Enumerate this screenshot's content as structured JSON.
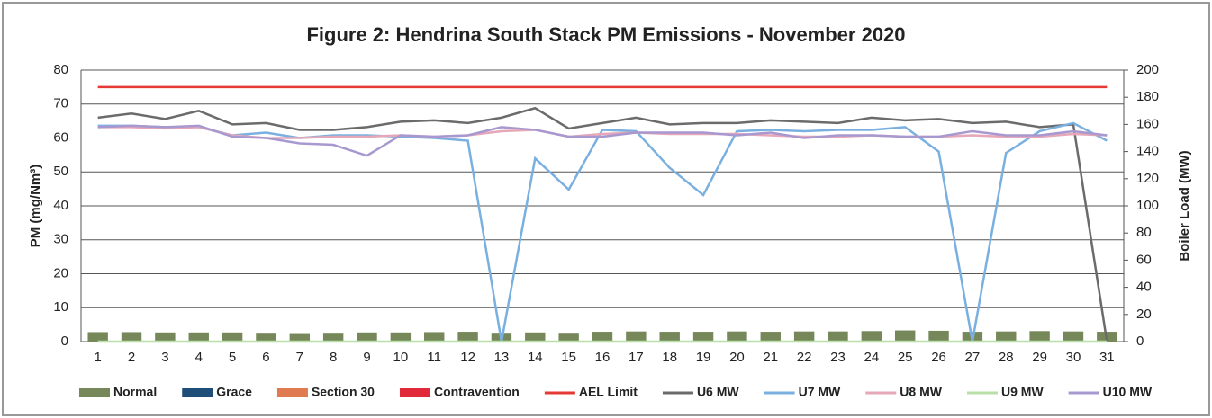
{
  "chart_data": {
    "type": "bar",
    "title": "Figure 2: Hendrina South Stack PM Emissions -  November 2020",
    "y_label": "PM (mg/Nm³)",
    "y2_label": "Boiler Load (MW)",
    "categories": [
      "1",
      "2",
      "3",
      "4",
      "5",
      "6",
      "7",
      "8",
      "9",
      "10",
      "11",
      "12",
      "13",
      "14",
      "15",
      "16",
      "17",
      "18",
      "19",
      "20",
      "21",
      "22",
      "23",
      "24",
      "25",
      "26",
      "27",
      "28",
      "29",
      "30",
      "31"
    ],
    "ylim": [
      0,
      80
    ],
    "yticks": [
      0,
      10,
      20,
      30,
      40,
      50,
      60,
      70,
      80
    ],
    "y2lim": [
      0,
      200
    ],
    "y2ticks": [
      0,
      20,
      40,
      60,
      80,
      100,
      120,
      140,
      160,
      180,
      200
    ],
    "grid": true,
    "legend": "bottom",
    "series": [
      {
        "name": "Normal",
        "type": "bar",
        "color": "#76885a",
        "values": [
          2.8,
          2.8,
          2.7,
          2.7,
          2.7,
          2.6,
          2.5,
          2.6,
          2.7,
          2.7,
          2.8,
          2.9,
          2.6,
          2.7,
          2.6,
          2.9,
          3,
          2.9,
          2.9,
          3,
          2.9,
          3,
          3,
          3.1,
          3.3,
          3.2,
          2.9,
          3,
          3.1,
          3,
          2.9
        ]
      },
      {
        "name": "Grace",
        "type": "bar",
        "color": "#1f4e79",
        "values": [
          0,
          0,
          0,
          0,
          0,
          0,
          0,
          0,
          0,
          0,
          0,
          0,
          0,
          0,
          0,
          0,
          0,
          0,
          0,
          0,
          0,
          0,
          0,
          0,
          0,
          0,
          0,
          0,
          0,
          0,
          0
        ]
      },
      {
        "name": "Section 30",
        "type": "bar",
        "color": "#e07a50",
        "values": [
          0,
          0,
          0,
          0,
          0,
          0,
          0,
          0,
          0,
          0,
          0,
          0,
          0,
          0,
          0,
          0,
          0,
          0,
          0,
          0,
          0,
          0,
          0,
          0,
          0,
          0,
          0,
          0,
          0,
          0,
          0
        ]
      },
      {
        "name": "Contravention",
        "type": "bar",
        "color": "#e02a3a",
        "values": [
          0,
          0,
          0,
          0,
          0,
          0,
          0,
          0,
          0,
          0,
          0,
          0,
          0,
          0,
          0,
          0,
          0,
          0,
          0,
          0,
          0,
          0,
          0,
          0,
          0,
          0,
          0,
          0,
          0,
          0,
          0
        ]
      },
      {
        "name": "AEL Limit",
        "type": "line",
        "color": "#e53935",
        "values": [
          75,
          75,
          75,
          75,
          75,
          75,
          75,
          75,
          75,
          75,
          75,
          75,
          75,
          75,
          75,
          75,
          75,
          75,
          75,
          75,
          75,
          75,
          75,
          75,
          75,
          75,
          75,
          75,
          75,
          75,
          75
        ]
      },
      {
        "name": "U6 MW",
        "type": "line",
        "axis": "y2",
        "color": "#6b6b6b",
        "values": [
          165,
          168,
          164,
          170,
          160,
          161,
          156,
          156,
          158,
          162,
          163,
          161,
          165,
          172,
          157,
          161,
          165,
          160,
          161,
          161,
          163,
          162,
          161,
          165,
          163,
          164,
          161,
          162,
          158,
          160,
          0
        ]
      },
      {
        "name": "U7 MW",
        "type": "line",
        "axis": "y2",
        "color": "#7ab0e0",
        "values": [
          159,
          159,
          158,
          158,
          152,
          154,
          150,
          152,
          152,
          151,
          150,
          148,
          0,
          135,
          112,
          156,
          155,
          128,
          108,
          155,
          156,
          155,
          156,
          156,
          158,
          140,
          0,
          139,
          155,
          161,
          148
        ]
      },
      {
        "name": "U8 MW",
        "type": "line",
        "axis": "y2",
        "color": "#e6a8b8",
        "values": [
          158,
          158,
          157,
          158,
          152,
          150,
          150,
          151,
          151,
          152,
          151,
          152,
          155,
          156,
          151,
          153,
          154,
          153,
          153,
          153,
          152,
          151,
          151,
          152,
          151,
          151,
          152,
          151,
          151,
          153,
          152
        ]
      },
      {
        "name": "U9 MW",
        "type": "line",
        "axis": "y2",
        "color": "#b8e0a8",
        "values": [
          0,
          0,
          0,
          0,
          0,
          0,
          0,
          0,
          0,
          0,
          0,
          0,
          0,
          0,
          0,
          0,
          0,
          0,
          0,
          0,
          0,
          0,
          0,
          0,
          0,
          0,
          0,
          0,
          0,
          0,
          0
        ]
      },
      {
        "name": "U10 MW",
        "type": "line",
        "axis": "y2",
        "color": "#a898d0",
        "values": [
          158,
          159,
          158,
          159,
          151,
          150,
          146,
          145,
          137,
          152,
          151,
          152,
          158,
          156,
          151,
          151,
          154,
          154,
          154,
          152,
          154,
          150,
          152,
          152,
          151,
          151,
          155,
          152,
          152,
          155,
          152
        ]
      }
    ]
  }
}
